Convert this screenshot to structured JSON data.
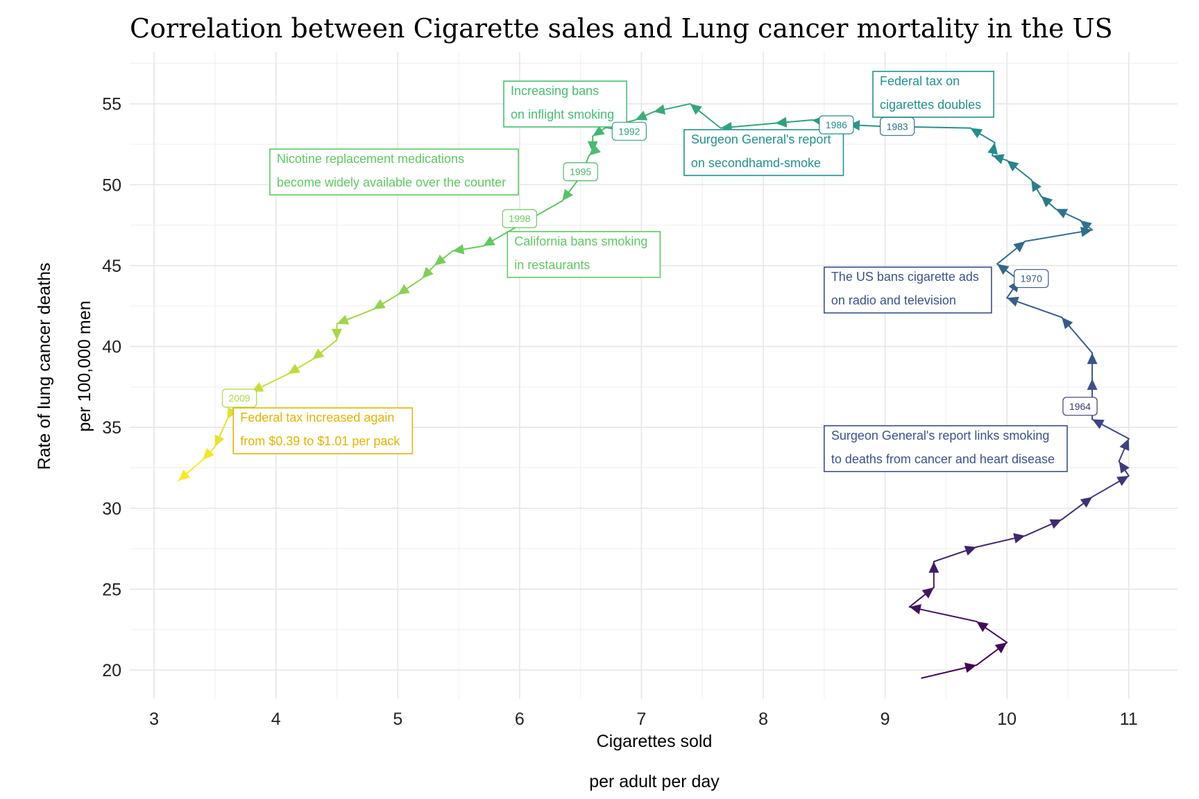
{
  "chart_data": {
    "type": "line",
    "title": "Correlation between Cigarette sales and Lung cancer mortality in the US",
    "xlabel": [
      "Cigarettes sold",
      "per adult per day"
    ],
    "ylabel": [
      "Rate of lung cancer deaths",
      "per 100,000 men"
    ],
    "xlim": [
      2.8,
      11.4
    ],
    "ylim": [
      18.2,
      58.2
    ],
    "x_ticks": [
      3,
      4,
      5,
      6,
      7,
      8,
      9,
      10,
      11
    ],
    "y_ticks": [
      20,
      25,
      30,
      35,
      40,
      45,
      50,
      55
    ],
    "grid": true,
    "path": [
      [
        9.3,
        19.5
      ],
      [
        9.75,
        20.3
      ],
      [
        10.0,
        21.7
      ],
      [
        9.75,
        23.0
      ],
      [
        9.2,
        23.9
      ],
      [
        9.4,
        25.1
      ],
      [
        9.4,
        26.7
      ],
      [
        9.75,
        27.6
      ],
      [
        10.15,
        28.3
      ],
      [
        10.45,
        29.3
      ],
      [
        10.7,
        30.7
      ],
      [
        11.0,
        32.0
      ],
      [
        10.92,
        32.9
      ],
      [
        11.0,
        34.3
      ],
      [
        10.7,
        35.5
      ],
      [
        10.7,
        36.5
      ],
      [
        10.7,
        38.0
      ],
      [
        10.7,
        39.6
      ],
      [
        10.45,
        41.8
      ],
      [
        10.0,
        43.0
      ],
      [
        10.1,
        44.1
      ],
      [
        9.92,
        45.1
      ],
      [
        10.15,
        46.5
      ],
      [
        10.7,
        47.2
      ],
      [
        10.6,
        47.8
      ],
      [
        10.4,
        48.5
      ],
      [
        10.28,
        49.3
      ],
      [
        10.2,
        50.3
      ],
      [
        10.0,
        51.5
      ],
      [
        9.88,
        51.8
      ],
      [
        9.9,
        52.6
      ],
      [
        9.7,
        53.5
      ],
      [
        9.0,
        53.6
      ],
      [
        8.7,
        53.7
      ],
      [
        8.4,
        54.0
      ],
      [
        8.1,
        53.8
      ],
      [
        7.65,
        53.5
      ],
      [
        7.4,
        55.0
      ],
      [
        7.1,
        54.5
      ],
      [
        6.95,
        54.0
      ],
      [
        6.7,
        53.5
      ],
      [
        6.6,
        53.0
      ],
      [
        6.6,
        52.0
      ],
      [
        6.57,
        51.8
      ],
      [
        6.5,
        50.5
      ],
      [
        6.35,
        49.0
      ],
      [
        6.0,
        47.5
      ],
      [
        5.7,
        46.2
      ],
      [
        5.45,
        45.9
      ],
      [
        5.3,
        45.0
      ],
      [
        5.2,
        44.2
      ],
      [
        5.0,
        43.2
      ],
      [
        4.8,
        42.3
      ],
      [
        4.5,
        41.4
      ],
      [
        4.5,
        40.4
      ],
      [
        4.3,
        39.2
      ],
      [
        4.1,
        38.3
      ],
      [
        3.8,
        37.2
      ],
      [
        3.65,
        36.2
      ],
      [
        3.6,
        35.5
      ],
      [
        3.5,
        33.8
      ],
      [
        3.4,
        33.0
      ],
      [
        3.2,
        31.7
      ]
    ],
    "colors": [
      "#440154",
      "#3b528b",
      "#21918c",
      "#5ec962",
      "#fde725"
    ],
    "years": [
      {
        "label": "1964",
        "x": 10.6,
        "y": 36.3
      },
      {
        "label": "1970",
        "x": 10.2,
        "y": 44.2
      },
      {
        "label": "1983",
        "x": 9.1,
        "y": 53.6
      },
      {
        "label": "1986",
        "x": 8.6,
        "y": 53.7
      },
      {
        "label": "1992",
        "x": 6.9,
        "y": 53.3
      },
      {
        "label": "1995",
        "x": 6.5,
        "y": 50.8
      },
      {
        "label": "1998",
        "x": 6.0,
        "y": 47.9
      },
      {
        "label": "2009",
        "x": 3.7,
        "y": 36.8
      }
    ],
    "annotations": [
      {
        "lines": [
          "Surgeon General's report links smoking",
          " to deaths from cancer and heart disease"
        ],
        "x": 8.5,
        "y": 35.1,
        "color": "#3b528b"
      },
      {
        "lines": [
          "The US bans cigarette ads",
          " on radio and television"
        ],
        "x": 8.5,
        "y": 44.9,
        "color": "#3b528b"
      },
      {
        "lines": [
          "Federal tax on",
          " cigarettes doubles"
        ],
        "x": 8.9,
        "y": 57.0,
        "color": "#21918c"
      },
      {
        "lines": [
          "Surgeon General's report",
          " on secondhamd-smoke"
        ],
        "x": 7.35,
        "y": 53.4,
        "color": "#21918c"
      },
      {
        "lines": [
          "Increasing bans",
          " on inflight smoking"
        ],
        "x": 5.87,
        "y": 56.4,
        "color": "#43bf71"
      },
      {
        "lines": [
          "Nicotine replacement medications",
          " become widely available over the counter"
        ],
        "x": 3.95,
        "y": 52.2,
        "color": "#5ec962"
      },
      {
        "lines": [
          "California bans smoking",
          " in restaurants"
        ],
        "x": 5.9,
        "y": 47.1,
        "color": "#5ec962"
      },
      {
        "lines": [
          "Federal tax increased again",
          " from $0.39 to $1.01 per pack"
        ],
        "x": 3.65,
        "y": 36.2,
        "color": "#e3b400"
      }
    ]
  }
}
